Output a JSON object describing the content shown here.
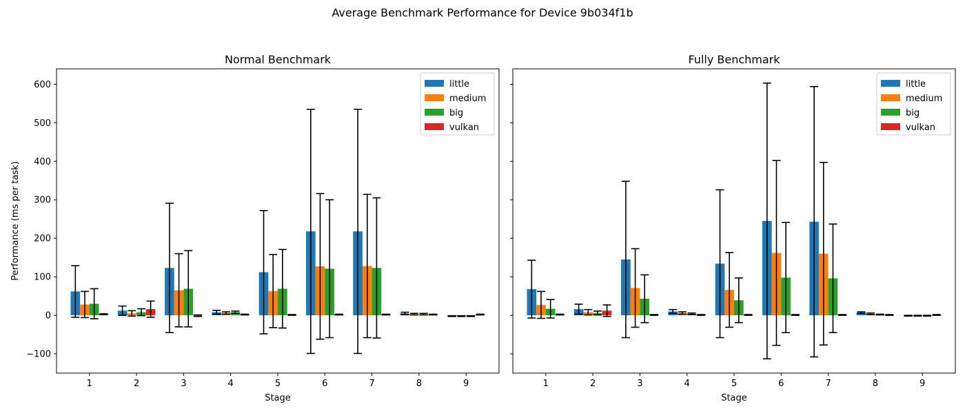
{
  "figure_title": "Average Benchmark Performance for Device 9b034f1b",
  "colors": {
    "little": "#1f77b4",
    "medium": "#ff7f0e",
    "big": "#2ca02c",
    "vulkan": "#d62728"
  },
  "chart_data": [
    {
      "type": "bar",
      "title": "Normal Benchmark",
      "xlabel": "Stage",
      "ylabel": "Performance (ms per task)",
      "ylim": [
        -150,
        640
      ],
      "yticks": [
        -100,
        0,
        100,
        200,
        300,
        400,
        500,
        600
      ],
      "categories": [
        "1",
        "2",
        "3",
        "4",
        "5",
        "6",
        "7",
        "8",
        "9"
      ],
      "legend": "top-right",
      "grid": false,
      "error_bars": true,
      "series": [
        {
          "name": "little",
          "values": [
            62,
            12,
            123,
            8,
            112,
            218,
            218,
            5,
            -2
          ],
          "errors": [
            67,
            12,
            168,
            5,
            160,
            317,
            317,
            3,
            1
          ]
        },
        {
          "name": "medium",
          "values": [
            28,
            5,
            65,
            6,
            63,
            127,
            128,
            3,
            -2
          ],
          "errors": [
            34,
            7,
            95,
            3,
            95,
            189,
            186,
            2,
            1
          ]
        },
        {
          "name": "big",
          "values": [
            30,
            8,
            69,
            8,
            69,
            121,
            123,
            3,
            -2
          ],
          "errors": [
            39,
            9,
            99,
            3,
            102,
            179,
            182,
            2,
            1
          ]
        },
        {
          "name": "vulkan",
          "values": [
            3,
            16,
            -1,
            2,
            1,
            2,
            2,
            2,
            2
          ],
          "errors": [
            1,
            21,
            2,
            1,
            1,
            1,
            1,
            1,
            1
          ]
        }
      ]
    },
    {
      "type": "bar",
      "title": "Fully Benchmark",
      "xlabel": "Stage",
      "ylabel": "",
      "ylim": [
        -150,
        640
      ],
      "yticks": [
        -100,
        0,
        100,
        200,
        300,
        400,
        500,
        600
      ],
      "categories": [
        "1",
        "2",
        "3",
        "4",
        "5",
        "6",
        "7",
        "8",
        "9"
      ],
      "legend": "top-right",
      "grid": false,
      "error_bars": true,
      "series": [
        {
          "name": "little",
          "values": [
            68,
            16,
            145,
            10,
            134,
            245,
            243,
            7,
            -1
          ],
          "errors": [
            75,
            13,
            203,
            5,
            192,
            358,
            351,
            2,
            1
          ]
        },
        {
          "name": "medium",
          "values": [
            27,
            8,
            71,
            6,
            66,
            162,
            160,
            4,
            -1
          ],
          "errors": [
            35,
            7,
            102,
            3,
            97,
            240,
            237,
            2,
            1
          ]
        },
        {
          "name": "big",
          "values": [
            17,
            6,
            43,
            4,
            39,
            98,
            96,
            2,
            -1
          ],
          "errors": [
            24,
            5,
            62,
            2,
            58,
            143,
            141,
            1,
            1
          ]
        },
        {
          "name": "vulkan",
          "values": [
            2,
            12,
            1,
            1,
            1,
            1,
            1,
            1,
            1
          ],
          "errors": [
            1,
            15,
            1,
            1,
            1,
            1,
            1,
            1,
            1
          ]
        }
      ]
    }
  ]
}
